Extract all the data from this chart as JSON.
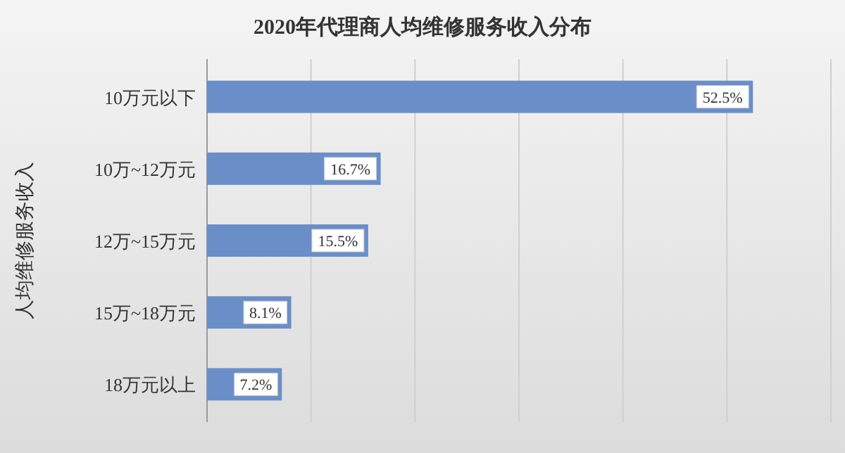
{
  "chart_data": {
    "type": "bar",
    "orientation": "horizontal",
    "title": "2020年代理商人均维修服务收入分布",
    "ylabel": "人均维修服务收入",
    "categories": [
      "10万元以下",
      "10万~12万元",
      "12万~15万元",
      "15万~18万元",
      "18万元以上"
    ],
    "values": [
      52.5,
      16.7,
      15.5,
      8.1,
      7.2
    ],
    "value_labels": [
      "52.5%",
      "16.7%",
      "15.5%",
      "8.1%",
      "7.2%"
    ],
    "color": "#6a8fc8",
    "xlim": [
      0,
      60
    ],
    "xticks": [
      {
        "value": 0,
        "label": null
      },
      {
        "value": 10,
        "label": null
      },
      {
        "value": 20,
        "label": null
      },
      {
        "value": 30,
        "label": null
      },
      {
        "value": 40,
        "label": null
      },
      {
        "value": 50,
        "label": null
      },
      {
        "value": 60,
        "label": null
      }
    ],
    "tick_labels": "y",
    "grid": "x"
  }
}
